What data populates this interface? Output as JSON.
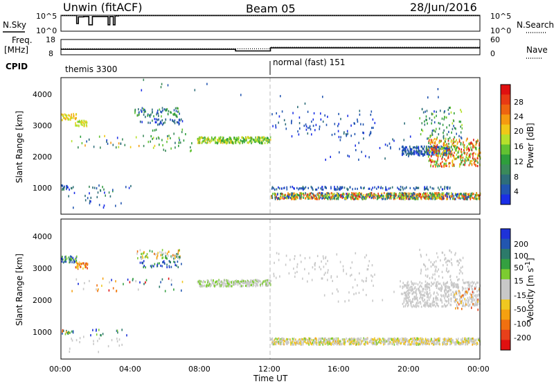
{
  "header": {
    "station": "Unwin (fitACF)",
    "beam": "Beam 05",
    "date": "28/Jun/2016"
  },
  "strips": {
    "nsky_label": "N.Sky",
    "nsearch_label": "N.Search",
    "noise_ticks_left": [
      "10^5",
      "10^0"
    ],
    "noise_ticks_right": [
      "10^5",
      "10^0"
    ],
    "freq_label": "Freq.",
    "freq_unit": "[MHz]",
    "freq_ticks": [
      "18",
      "8"
    ],
    "nave_label": "Nave",
    "nave_ticks": [
      "60",
      "0"
    ],
    "cpid_label": "CPID",
    "cpid_segments": [
      {
        "text": "themis 3300",
        "start_hour": 0,
        "end_hour": 12
      },
      {
        "text": "normal (fast) 151",
        "start_hour": 12,
        "end_hour": 24
      }
    ]
  },
  "axes": {
    "ylabel": "Slant Range [km]",
    "xlabel": "Time UT",
    "x_tick_labels": [
      "00:00",
      "04:00",
      "08:00",
      "12:00",
      "16:00",
      "20:00",
      "00:00"
    ],
    "y_tick_labels": [
      "1000",
      "2000",
      "3000",
      "4000"
    ]
  },
  "colorbars": {
    "power": {
      "label": "Power [dB]",
      "tick_labels": [
        "4",
        "8",
        "12",
        "16",
        "20",
        "24",
        "28"
      ],
      "colors": [
        "#1a2ee6",
        "#2255b0",
        "#2e6e7a",
        "#3a8a5a",
        "#2e9e3c",
        "#62c232",
        "#b6e02c",
        "#f0c818",
        "#f59a10",
        "#ee6410",
        "#e83a14",
        "#e01010"
      ]
    },
    "velocity": {
      "label": "Velocity [m s",
      "label_sup": "-1",
      "label_end": "]",
      "tick_labels": [
        "200",
        "100",
        "50",
        "15",
        "-15",
        "-50",
        "-100",
        "-200"
      ],
      "colors": [
        "#1e32d8",
        "#2256b0",
        "#2c7a6a",
        "#34a040",
        "#7ccc30",
        "#c8c8c8",
        "#c8c8c8",
        "#f0c820",
        "#f5a010",
        "#f07010",
        "#e8401a",
        "#e01010"
      ]
    }
  },
  "chart_data": [
    {
      "type": "line",
      "title": "N.Sky / N.Search",
      "x_unit": "hour UT",
      "xlim": [
        0,
        24
      ],
      "ylim": [
        0,
        5
      ],
      "y_scale": "log10",
      "series": [
        {
          "name": "N.Sky",
          "style": "solid",
          "x": [
            0,
            0.9,
            0.9,
            1.0,
            1.0,
            1.3,
            1.3,
            1.6,
            1.6,
            1.8,
            1.8,
            2.7,
            2.7,
            2.8,
            2.8,
            3.0,
            3.0,
            3.1,
            3.1,
            3.3,
            3.3,
            24
          ],
          "y": [
            4.9,
            4.9,
            2.4,
            2.4,
            4.5,
            4.5,
            4.6,
            4.6,
            2.0,
            2.0,
            4.6,
            4.6,
            2.0,
            2.0,
            4.6,
            4.6,
            2.0,
            2.0,
            4.8,
            4.8,
            4.9,
            4.9
          ]
        },
        {
          "name": "N.Search",
          "style": "dotted",
          "x": [
            0,
            24
          ],
          "y": [
            4.95,
            4.95
          ]
        }
      ]
    },
    {
      "type": "line",
      "title": "Freq. / Nave",
      "x_unit": "hour UT",
      "xlim": [
        0,
        24
      ],
      "ylim": [
        8,
        18
      ],
      "series": [
        {
          "name": "Freq.",
          "style": "solid",
          "x": [
            0,
            10,
            10,
            12,
            12,
            24
          ],
          "y": [
            11.6,
            11.6,
            10.5,
            10.5,
            12.5,
            12.5
          ]
        },
        {
          "name": "Nave",
          "style": "dotted",
          "x": [
            0,
            10,
            10,
            12,
            12,
            24
          ],
          "y": [
            11.9,
            11.9,
            11.9,
            11.9,
            13.0,
            13.0
          ]
        }
      ]
    },
    {
      "type": "heatmap",
      "title": "Power",
      "x_unit": "hour UT",
      "xlim": [
        0,
        24
      ],
      "ylim": [
        200,
        4600
      ],
      "value_range": [
        3,
        30
      ],
      "clusters": [
        {
          "x": [
            0.0,
            0.9
          ],
          "y": [
            3200,
            3400
          ],
          "v": [
            18,
            22
          ],
          "n": 45
        },
        {
          "x": [
            0.8,
            1.5
          ],
          "y": [
            3000,
            3200
          ],
          "v": [
            16,
            20
          ],
          "n": 35
        },
        {
          "x": [
            0.0,
            0.7
          ],
          "y": [
            950,
            1100
          ],
          "v": [
            4,
            12
          ],
          "n": 18
        },
        {
          "x": [
            0.3,
            3.5
          ],
          "y": [
            350,
            900
          ],
          "v": [
            4,
            10
          ],
          "n": 22
        },
        {
          "x": [
            1.5,
            4.0
          ],
          "y": [
            900,
            1100
          ],
          "v": [
            4,
            14
          ],
          "n": 14
        },
        {
          "x": [
            0.5,
            7.0
          ],
          "y": [
            2300,
            2700
          ],
          "v": [
            4,
            22
          ],
          "n": 40
        },
        {
          "x": [
            4.2,
            6.8
          ],
          "y": [
            3300,
            3600
          ],
          "v": [
            4,
            16
          ],
          "n": 70
        },
        {
          "x": [
            4.5,
            7.0
          ],
          "y": [
            3050,
            3250
          ],
          "v": [
            4,
            10
          ],
          "n": 40
        },
        {
          "x": [
            5.0,
            7.5
          ],
          "y": [
            2200,
            2900
          ],
          "v": [
            8,
            18
          ],
          "n": 30
        },
        {
          "x": [
            7.8,
            12.0
          ],
          "y": [
            2450,
            2650
          ],
          "v": [
            12,
            20
          ],
          "n": 260
        },
        {
          "x": [
            4.0,
            12.0
          ],
          "y": [
            3500,
            4500
          ],
          "v": [
            4,
            12
          ],
          "n": 8
        },
        {
          "x": [
            12.0,
            24.0
          ],
          "y": [
            650,
            850
          ],
          "v": [
            4,
            28
          ],
          "n": 900
        },
        {
          "x": [
            12.0,
            22.5
          ],
          "y": [
            950,
            1050
          ],
          "v": [
            4,
            10
          ],
          "n": 140
        },
        {
          "x": [
            12.0,
            18.0
          ],
          "y": [
            2600,
            3500
          ],
          "v": [
            4,
            8
          ],
          "n": 80
        },
        {
          "x": [
            15.0,
            20.0
          ],
          "y": [
            1900,
            2800
          ],
          "v": [
            4,
            8
          ],
          "n": 30
        },
        {
          "x": [
            19.5,
            22.3
          ],
          "y": [
            2050,
            2350
          ],
          "v": [
            4,
            10
          ],
          "n": 220
        },
        {
          "x": [
            21.0,
            24.0
          ],
          "y": [
            1700,
            2600
          ],
          "v": [
            12,
            30
          ],
          "n": 360
        },
        {
          "x": [
            20.5,
            23.0
          ],
          "y": [
            2600,
            3600
          ],
          "v": [
            6,
            18
          ],
          "n": 90
        },
        {
          "x": [
            12.5,
            22.0
          ],
          "y": [
            3000,
            4300
          ],
          "v": [
            4,
            8
          ],
          "n": 15
        }
      ]
    },
    {
      "type": "heatmap",
      "title": "Velocity",
      "x_unit": "hour UT",
      "xlim": [
        0,
        24
      ],
      "ylim": [
        200,
        4600
      ],
      "value_range": [
        -250,
        250
      ],
      "clusters": [
        {
          "x": [
            0.0,
            0.9
          ],
          "y": [
            3200,
            3400
          ],
          "v": [
            50,
            250
          ],
          "n": 40
        },
        {
          "x": [
            0.8,
            1.5
          ],
          "y": [
            3000,
            3200
          ],
          "v": [
            -200,
            -20
          ],
          "n": 35
        },
        {
          "x": [
            0.0,
            0.7
          ],
          "y": [
            950,
            1100
          ],
          "v": [
            -200,
            200
          ],
          "n": 18
        },
        {
          "x": [
            0.3,
            3.5
          ],
          "y": [
            350,
            900
          ],
          "v": [
            -15,
            15
          ],
          "n": 20
        },
        {
          "x": [
            1.5,
            4.0
          ],
          "y": [
            900,
            1100
          ],
          "v": [
            50,
            250
          ],
          "n": 14
        },
        {
          "x": [
            0.5,
            7.0
          ],
          "y": [
            2300,
            2700
          ],
          "v": [
            -250,
            250
          ],
          "n": 40
        },
        {
          "x": [
            4.2,
            6.8
          ],
          "y": [
            3300,
            3600
          ],
          "v": [
            -150,
            150
          ],
          "n": 70
        },
        {
          "x": [
            4.5,
            7.0
          ],
          "y": [
            3050,
            3250
          ],
          "v": [
            100,
            250
          ],
          "n": 40
        },
        {
          "x": [
            7.8,
            12.0
          ],
          "y": [
            2450,
            2650
          ],
          "v": [
            10,
            60
          ],
          "n": 260
        },
        {
          "x": [
            12.0,
            24.0
          ],
          "y": [
            620,
            820
          ],
          "v": [
            -90,
            60
          ],
          "n": 900
        },
        {
          "x": [
            12.0,
            18.0
          ],
          "y": [
            2600,
            3500
          ],
          "v": [
            -15,
            15
          ],
          "n": 80
        },
        {
          "x": [
            15.0,
            20.0
          ],
          "y": [
            1900,
            2800
          ],
          "v": [
            -15,
            40
          ],
          "n": 30
        },
        {
          "x": [
            19.5,
            24.0
          ],
          "y": [
            1800,
            2600
          ],
          "v": [
            -15,
            15
          ],
          "n": 520
        },
        {
          "x": [
            20.5,
            23.0
          ],
          "y": [
            2600,
            3600
          ],
          "v": [
            -15,
            15
          ],
          "n": 90
        },
        {
          "x": [
            22.5,
            24.0
          ],
          "y": [
            1700,
            2400
          ],
          "v": [
            -200,
            -50
          ],
          "n": 30
        }
      ]
    }
  ]
}
